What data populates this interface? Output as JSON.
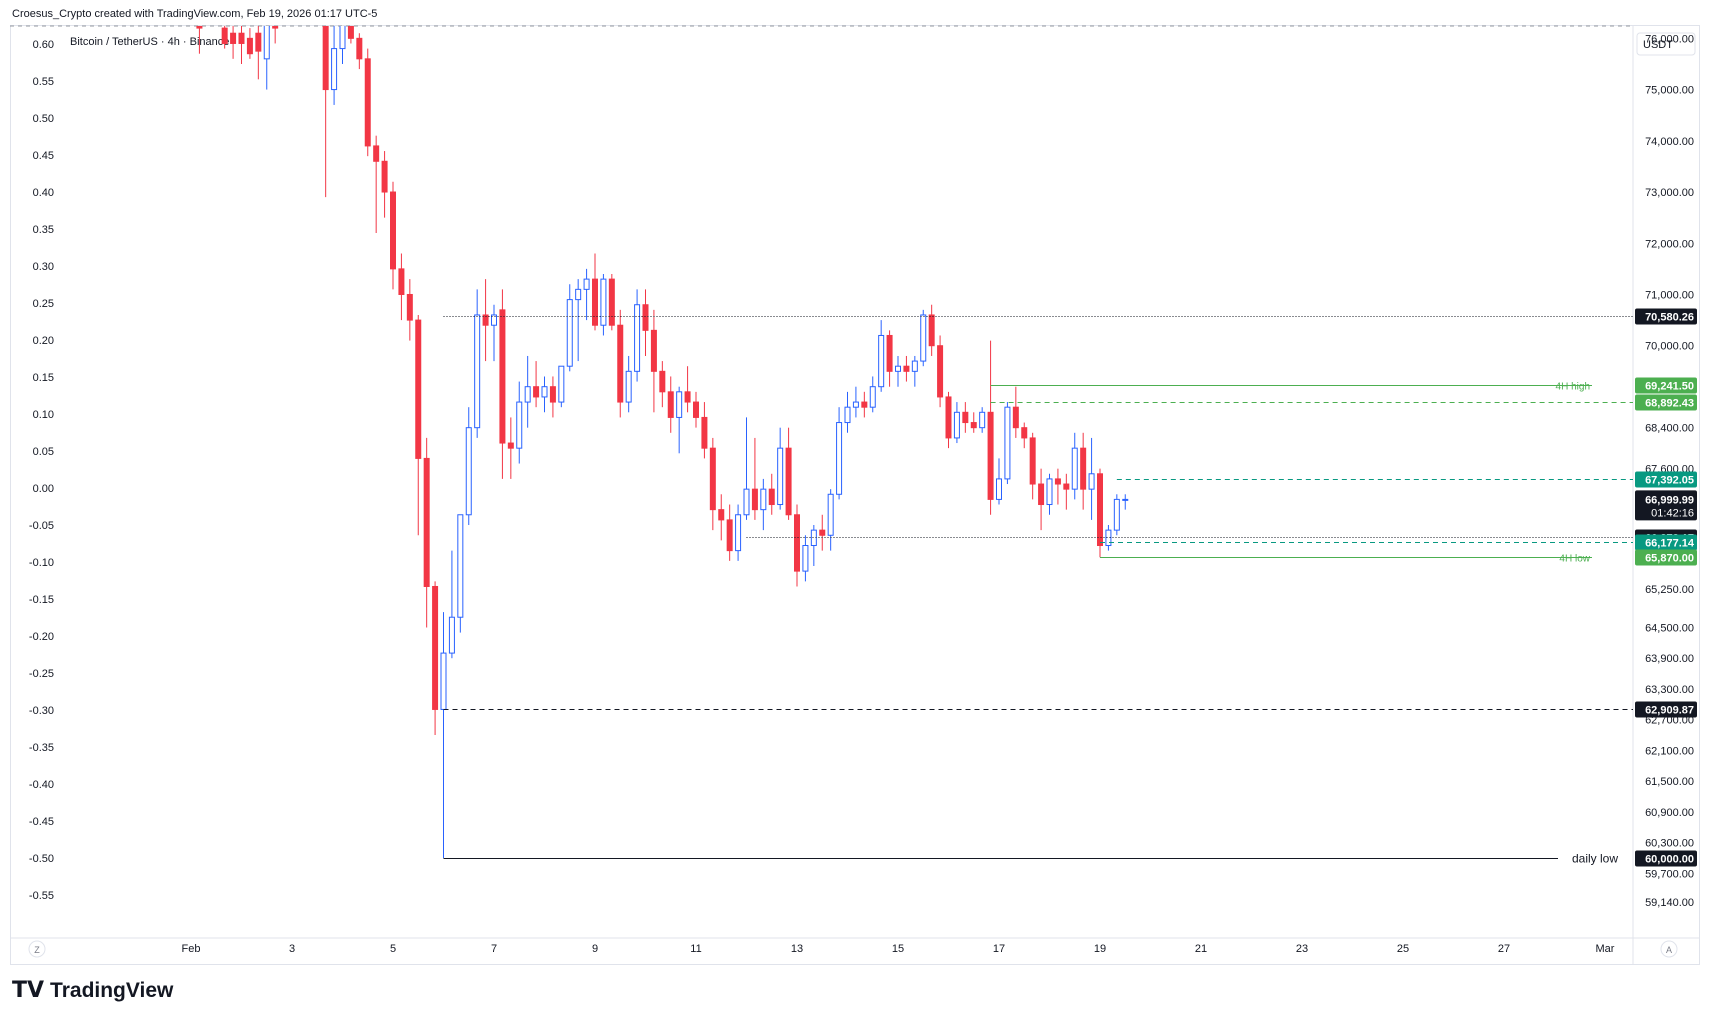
{
  "header": {
    "attribution": "Croesus_Crypto created with TradingView.com, Feb 19, 2026 01:17 UTC-5",
    "symbol": "Bitcoin / TetherUS · 4h · Binance",
    "currency": "USDT"
  },
  "brand": {
    "logo": "TV",
    "name": "TradingView"
  },
  "colors": {
    "up": "#2962ff",
    "down": "#f23645",
    "green": "#4caf50",
    "teal": "#089981",
    "black": "#131722"
  },
  "chart_data": {
    "type": "candlestick",
    "title": "Bitcoin / TetherUS · 4h · Binance",
    "left_axis": {
      "labels": [
        "0.60",
        "0.55",
        "0.50",
        "0.45",
        "0.40",
        "0.35",
        "0.30",
        "0.25",
        "0.20",
        "0.15",
        "0.10",
        "0.05",
        "0.00",
        "-0.05",
        "-0.10",
        "-0.15",
        "-0.20",
        "-0.25",
        "-0.30",
        "-0.35",
        "-0.40",
        "-0.45",
        "-0.50",
        "-0.55"
      ]
    },
    "right_axis": {
      "labels": [
        "76,000.00",
        "75,000.00",
        "74,000.00",
        "73,000.00",
        "72,000.00",
        "71,000.00",
        "70,000.00",
        "68,400.00",
        "67,600.00",
        "65,250.00",
        "64,500.00",
        "63,900.00",
        "63,300.00",
        "62,700.00",
        "62,100.00",
        "61,500.00",
        "60,900.00",
        "60,300.00",
        "59,700.00",
        "59,140.00"
      ],
      "values": [
        76000,
        75000,
        74000,
        73000,
        72000,
        71000,
        70000,
        68400,
        67600,
        65250,
        64500,
        63900,
        63300,
        62700,
        62100,
        61500,
        60900,
        60300,
        59700,
        59140
      ]
    },
    "x_axis": {
      "labels": [
        "Feb",
        "3",
        "5",
        "7",
        "9",
        "11",
        "13",
        "15",
        "17",
        "19",
        "21",
        "23",
        "25",
        "27",
        "Mar"
      ],
      "dates": [
        "2026-02-01",
        "2026-02-03",
        "2026-02-05",
        "2026-02-07",
        "2026-02-09",
        "2026-02-11",
        "2026-02-13",
        "2026-02-15",
        "2026-02-17",
        "2026-02-19",
        "2026-02-21",
        "2026-02-23",
        "2026-02-25",
        "2026-02-27",
        "2026-03-01"
      ]
    },
    "candles": [
      {
        "t": "2026-02-01T04:00",
        "o": 76300,
        "h": 76500,
        "l": 75700,
        "c": 76200
      },
      {
        "t": "2026-02-01T16:00",
        "o": 76200,
        "h": 76500,
        "l": 75800,
        "c": 75900
      },
      {
        "t": "2026-02-01T20:00",
        "o": 76100,
        "h": 76400,
        "l": 75600,
        "c": 75900
      },
      {
        "t": "2026-02-02T00:00",
        "o": 76100,
        "h": 76300,
        "l": 75500,
        "c": 75900
      },
      {
        "t": "2026-02-02T04:00",
        "o": 76000,
        "h": 76200,
        "l": 75600,
        "c": 75700
      },
      {
        "t": "2026-02-02T08:00",
        "o": 76100,
        "h": 76400,
        "l": 75200,
        "c": 75750
      },
      {
        "t": "2026-02-02T12:00",
        "o": 75600,
        "h": 76400,
        "l": 75000,
        "c": 76400
      },
      {
        "t": "2026-02-02T16:00",
        "o": 76400,
        "h": 76500,
        "l": 75900,
        "c": 76200
      },
      {
        "t": "2026-02-03T16:00",
        "o": 76700,
        "h": 76900,
        "l": 72900,
        "c": 75000
      },
      {
        "t": "2026-02-03T20:00",
        "o": 75000,
        "h": 76300,
        "l": 74700,
        "c": 75800
      },
      {
        "t": "2026-02-04T00:00",
        "o": 75800,
        "h": 76500,
        "l": 75500,
        "c": 76300
      },
      {
        "t": "2026-02-04T04:00",
        "o": 76300,
        "h": 76400,
        "l": 75900,
        "c": 76000
      },
      {
        "t": "2026-02-04T08:00",
        "o": 76000,
        "h": 76100,
        "l": 75400,
        "c": 75600
      },
      {
        "t": "2026-02-04T12:00",
        "o": 75600,
        "h": 75800,
        "l": 73700,
        "c": 73900
      },
      {
        "t": "2026-02-04T16:00",
        "o": 73900,
        "h": 74100,
        "l": 72200,
        "c": 73600
      },
      {
        "t": "2026-02-04T20:00",
        "o": 73600,
        "h": 73800,
        "l": 72500,
        "c": 73000
      },
      {
        "t": "2026-02-05T00:00",
        "o": 73000,
        "h": 73200,
        "l": 71100,
        "c": 71500
      },
      {
        "t": "2026-02-05T04:00",
        "o": 71500,
        "h": 71800,
        "l": 70500,
        "c": 71000
      },
      {
        "t": "2026-02-05T08:00",
        "o": 71000,
        "h": 71300,
        "l": 70100,
        "c": 70500
      },
      {
        "t": "2026-02-05T12:00",
        "o": 70500,
        "h": 70600,
        "l": 66300,
        "c": 67800
      },
      {
        "t": "2026-02-05T16:00",
        "o": 67800,
        "h": 68200,
        "l": 64500,
        "c": 65300
      },
      {
        "t": "2026-02-05T20:00",
        "o": 65300,
        "h": 65400,
        "l": 62400,
        "c": 62900
      },
      {
        "t": "2026-02-06T00:00",
        "o": 62900,
        "h": 64800,
        "l": 60000,
        "c": 64000
      },
      {
        "t": "2026-02-06T04:00",
        "o": 64000,
        "h": 66000,
        "l": 63900,
        "c": 64700
      },
      {
        "t": "2026-02-06T08:00",
        "o": 64700,
        "h": 66700,
        "l": 64400,
        "c": 66700
      },
      {
        "t": "2026-02-06T12:00",
        "o": 66700,
        "h": 68800,
        "l": 66500,
        "c": 68400
      },
      {
        "t": "2026-02-06T16:00",
        "o": 68400,
        "h": 71100,
        "l": 68200,
        "c": 70600
      },
      {
        "t": "2026-02-06T20:00",
        "o": 70600,
        "h": 71300,
        "l": 69700,
        "c": 70400
      },
      {
        "t": "2026-02-07T00:00",
        "o": 70400,
        "h": 70800,
        "l": 69700,
        "c": 70600
      },
      {
        "t": "2026-02-07T04:00",
        "o": 70700,
        "h": 71100,
        "l": 67400,
        "c": 68100
      },
      {
        "t": "2026-02-07T08:00",
        "o": 68100,
        "h": 68600,
        "l": 67400,
        "c": 68000
      },
      {
        "t": "2026-02-07T12:00",
        "o": 68000,
        "h": 69300,
        "l": 67700,
        "c": 68900
      },
      {
        "t": "2026-02-07T16:00",
        "o": 68900,
        "h": 69800,
        "l": 68400,
        "c": 69200
      },
      {
        "t": "2026-02-07T20:00",
        "o": 69200,
        "h": 69700,
        "l": 68800,
        "c": 69000
      },
      {
        "t": "2026-02-08T00:00",
        "o": 69000,
        "h": 69400,
        "l": 68700,
        "c": 69200
      },
      {
        "t": "2026-02-08T04:00",
        "o": 69200,
        "h": 69400,
        "l": 68600,
        "c": 68900
      },
      {
        "t": "2026-02-08T08:00",
        "o": 68900,
        "h": 69600,
        "l": 68800,
        "c": 69600
      },
      {
        "t": "2026-02-08T12:00",
        "o": 69600,
        "h": 71200,
        "l": 69500,
        "c": 70900
      },
      {
        "t": "2026-02-08T16:00",
        "o": 70900,
        "h": 71300,
        "l": 69700,
        "c": 71100
      },
      {
        "t": "2026-02-08T20:00",
        "o": 71100,
        "h": 71500,
        "l": 70500,
        "c": 71300
      },
      {
        "t": "2026-02-09T00:00",
        "o": 71300,
        "h": 71800,
        "l": 70300,
        "c": 70400
      },
      {
        "t": "2026-02-09T04:00",
        "o": 70400,
        "h": 71400,
        "l": 70200,
        "c": 71300
      },
      {
        "t": "2026-02-09T08:00",
        "o": 71300,
        "h": 71400,
        "l": 70300,
        "c": 70400
      },
      {
        "t": "2026-02-09T12:00",
        "o": 70400,
        "h": 70700,
        "l": 68600,
        "c": 68900
      },
      {
        "t": "2026-02-09T16:00",
        "o": 68900,
        "h": 69800,
        "l": 68700,
        "c": 69500
      },
      {
        "t": "2026-02-09T20:00",
        "o": 69500,
        "h": 71100,
        "l": 69300,
        "c": 70800
      },
      {
        "t": "2026-02-10T00:00",
        "o": 70800,
        "h": 71100,
        "l": 69800,
        "c": 70300
      },
      {
        "t": "2026-02-10T04:00",
        "o": 70300,
        "h": 70700,
        "l": 68700,
        "c": 69500
      },
      {
        "t": "2026-02-10T08:00",
        "o": 69500,
        "h": 69700,
        "l": 68800,
        "c": 69100
      },
      {
        "t": "2026-02-10T12:00",
        "o": 69100,
        "h": 69400,
        "l": 68300,
        "c": 68600
      },
      {
        "t": "2026-02-10T16:00",
        "o": 68600,
        "h": 69200,
        "l": 67900,
        "c": 69100
      },
      {
        "t": "2026-02-10T20:00",
        "o": 69100,
        "h": 69600,
        "l": 68700,
        "c": 68900
      },
      {
        "t": "2026-02-11T00:00",
        "o": 68900,
        "h": 69100,
        "l": 68400,
        "c": 68600
      },
      {
        "t": "2026-02-11T04:00",
        "o": 68600,
        "h": 68900,
        "l": 67800,
        "c": 68000
      },
      {
        "t": "2026-02-11T08:00",
        "o": 68000,
        "h": 68200,
        "l": 66400,
        "c": 66800
      },
      {
        "t": "2026-02-11T12:00",
        "o": 66800,
        "h": 67100,
        "l": 66200,
        "c": 66600
      },
      {
        "t": "2026-02-11T16:00",
        "o": 66600,
        "h": 66900,
        "l": 65800,
        "c": 66000
      },
      {
        "t": "2026-02-11T20:00",
        "o": 66000,
        "h": 66900,
        "l": 65800,
        "c": 66700
      },
      {
        "t": "2026-02-12T00:00",
        "o": 66700,
        "h": 68600,
        "l": 66600,
        "c": 67200
      },
      {
        "t": "2026-02-12T04:00",
        "o": 67200,
        "h": 68200,
        "l": 66600,
        "c": 66800
      },
      {
        "t": "2026-02-12T08:00",
        "o": 66800,
        "h": 67400,
        "l": 66400,
        "c": 67200
      },
      {
        "t": "2026-02-12T12:00",
        "o": 67200,
        "h": 67500,
        "l": 66700,
        "c": 66900
      },
      {
        "t": "2026-02-12T16:00",
        "o": 66900,
        "h": 68400,
        "l": 66800,
        "c": 68000
      },
      {
        "t": "2026-02-12T20:00",
        "o": 68000,
        "h": 68400,
        "l": 66600,
        "c": 66700
      },
      {
        "t": "2026-02-13T00:00",
        "o": 66700,
        "h": 66900,
        "l": 65300,
        "c": 65600
      },
      {
        "t": "2026-02-13T04:00",
        "o": 65600,
        "h": 66300,
        "l": 65400,
        "c": 66100
      },
      {
        "t": "2026-02-13T08:00",
        "o": 66100,
        "h": 66500,
        "l": 65700,
        "c": 66400
      },
      {
        "t": "2026-02-13T12:00",
        "o": 66400,
        "h": 66700,
        "l": 66000,
        "c": 66300
      },
      {
        "t": "2026-02-13T16:00",
        "o": 66300,
        "h": 67200,
        "l": 66000,
        "c": 67100
      },
      {
        "t": "2026-02-13T20:00",
        "o": 67100,
        "h": 68800,
        "l": 67000,
        "c": 68500
      },
      {
        "t": "2026-02-14T00:00",
        "o": 68500,
        "h": 69100,
        "l": 68300,
        "c": 68800
      },
      {
        "t": "2026-02-14T04:00",
        "o": 68800,
        "h": 69200,
        "l": 68600,
        "c": 68900
      },
      {
        "t": "2026-02-14T08:00",
        "o": 68900,
        "h": 69100,
        "l": 68600,
        "c": 68800
      },
      {
        "t": "2026-02-14T12:00",
        "o": 68800,
        "h": 69400,
        "l": 68700,
        "c": 69200
      },
      {
        "t": "2026-02-14T16:00",
        "o": 69200,
        "h": 70500,
        "l": 69100,
        "c": 70200
      },
      {
        "t": "2026-02-14T20:00",
        "o": 70200,
        "h": 70300,
        "l": 69200,
        "c": 69500
      },
      {
        "t": "2026-02-15T00:00",
        "o": 69500,
        "h": 69800,
        "l": 69200,
        "c": 69600
      },
      {
        "t": "2026-02-15T04:00",
        "o": 69600,
        "h": 69800,
        "l": 69300,
        "c": 69500
      },
      {
        "t": "2026-02-15T08:00",
        "o": 69500,
        "h": 69800,
        "l": 69200,
        "c": 69700
      },
      {
        "t": "2026-02-15T12:00",
        "o": 69700,
        "h": 70700,
        "l": 69600,
        "c": 70600
      },
      {
        "t": "2026-02-15T16:00",
        "o": 70600,
        "h": 70800,
        "l": 69800,
        "c": 70000
      },
      {
        "t": "2026-02-15T20:00",
        "o": 70000,
        "h": 70200,
        "l": 68800,
        "c": 69000
      },
      {
        "t": "2026-02-16T00:00",
        "o": 69000,
        "h": 69100,
        "l": 68000,
        "c": 68200
      },
      {
        "t": "2026-02-16T04:00",
        "o": 68200,
        "h": 68900,
        "l": 68100,
        "c": 68700
      },
      {
        "t": "2026-02-16T08:00",
        "o": 68700,
        "h": 68900,
        "l": 68300,
        "c": 68500
      },
      {
        "t": "2026-02-16T12:00",
        "o": 68500,
        "h": 68700,
        "l": 68300,
        "c": 68400
      },
      {
        "t": "2026-02-16T16:00",
        "o": 68400,
        "h": 68800,
        "l": 68300,
        "c": 68700
      },
      {
        "t": "2026-02-16T20:00",
        "o": 68700,
        "h": 70100,
        "l": 66700,
        "c": 67000
      },
      {
        "t": "2026-02-17T00:00",
        "o": 67000,
        "h": 67800,
        "l": 66900,
        "c": 67400
      },
      {
        "t": "2026-02-17T04:00",
        "o": 67400,
        "h": 68900,
        "l": 67300,
        "c": 68800
      },
      {
        "t": "2026-02-17T08:00",
        "o": 68800,
        "h": 69200,
        "l": 68200,
        "c": 68400
      },
      {
        "t": "2026-02-17T12:00",
        "o": 68400,
        "h": 68500,
        "l": 68000,
        "c": 68200
      },
      {
        "t": "2026-02-17T16:00",
        "o": 68200,
        "h": 68300,
        "l": 67000,
        "c": 67300
      },
      {
        "t": "2026-02-17T20:00",
        "o": 67300,
        "h": 67600,
        "l": 66400,
        "c": 66900
      },
      {
        "t": "2026-02-18T00:00",
        "o": 66900,
        "h": 67500,
        "l": 66700,
        "c": 67400
      },
      {
        "t": "2026-02-18T04:00",
        "o": 67400,
        "h": 67600,
        "l": 66900,
        "c": 67300
      },
      {
        "t": "2026-02-18T08:00",
        "o": 67300,
        "h": 67500,
        "l": 66800,
        "c": 67200
      },
      {
        "t": "2026-02-18T12:00",
        "o": 67200,
        "h": 68300,
        "l": 67000,
        "c": 68000
      },
      {
        "t": "2026-02-18T16:00",
        "o": 68000,
        "h": 68300,
        "l": 66800,
        "c": 67200
      },
      {
        "t": "2026-02-18T20:00",
        "o": 67200,
        "h": 68200,
        "l": 66600,
        "c": 67500
      },
      {
        "t": "2026-02-19T00:00",
        "o": 67500,
        "h": 67600,
        "l": 65870,
        "c": 66100
      },
      {
        "t": "2026-02-19T04:00",
        "o": 66100,
        "h": 66500,
        "l": 66000,
        "c": 66400
      },
      {
        "t": "2026-02-19T08:00",
        "o": 66400,
        "h": 67100,
        "l": 66300,
        "c": 67000
      },
      {
        "t": "2026-02-19T12:00",
        "o": 67000,
        "h": 67100,
        "l": 66800,
        "c": 67000
      }
    ],
    "levels": [
      {
        "name": "level-70580",
        "price": 70580.26,
        "label": "70,580.26",
        "style": "dotted",
        "color": "#131722",
        "text": ""
      },
      {
        "name": "4h-high",
        "price": 69241.5,
        "label": "69,241.50",
        "style": "solid",
        "color": "#4caf50",
        "text": "4H high"
      },
      {
        "name": "level-68892",
        "price": 68892.43,
        "label": "68,892.43",
        "style": "dashed",
        "color": "#4caf50",
        "text": ""
      },
      {
        "name": "level-67392",
        "price": 67392.05,
        "label": "67,392.05",
        "style": "dashed",
        "color": "#089981",
        "text": ""
      },
      {
        "name": "level-66272",
        "price": 66272.17,
        "label": "66,272.17",
        "style": "dotted",
        "color": "#131722",
        "text": ""
      },
      {
        "name": "level-66177",
        "price": 66177.14,
        "label": "66,177.14",
        "style": "dashed",
        "color": "#089981",
        "text": ""
      },
      {
        "name": "4h-low",
        "price": 65870.0,
        "label": "65,870.00",
        "style": "solid",
        "color": "#4caf50",
        "text": "4H low"
      },
      {
        "name": "level-62909",
        "price": 62909.87,
        "label": "62,909.87",
        "style": "dashed",
        "color": "#131722",
        "text": ""
      },
      {
        "name": "daily-low",
        "price": 60000.0,
        "label": "60,000.00",
        "style": "solid",
        "color": "#131722",
        "text": "daily low"
      }
    ],
    "current_price": {
      "value": 66999.99,
      "label": "66,999.99",
      "countdown": "01:42:16"
    },
    "corner_labels": {
      "left": "Z",
      "right": "A"
    }
  }
}
